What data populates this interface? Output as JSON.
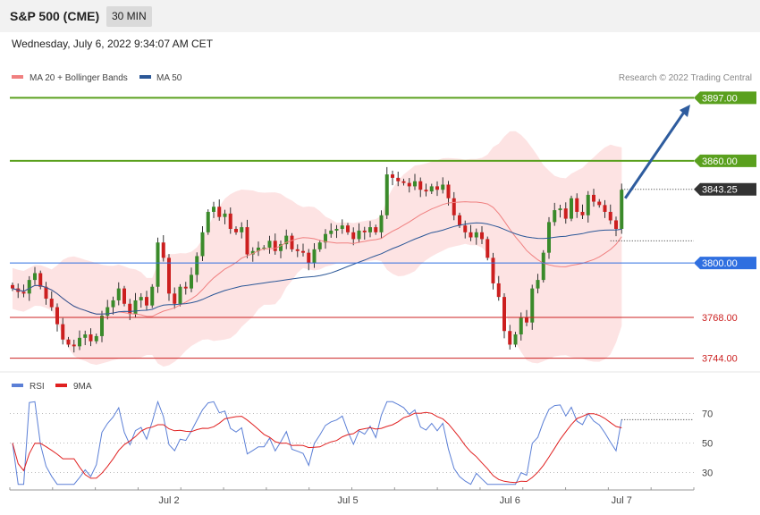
{
  "header": {
    "title": "S&P 500 (CME)",
    "interval": "30 MIN",
    "datetime": "Wednesday, July 6, 2022 9:34:07 AM CET"
  },
  "legend": {
    "bollinger_label": "MA 20 + Bollinger Bands",
    "bollinger_color": "#f08080",
    "ma50_label": "MA 50",
    "ma50_color": "#2b5797",
    "credit": "Research © 2022 Trading Central"
  },
  "rsi_legend": {
    "rsi_label": "RSI",
    "rsi_color": "#5b7fd6",
    "ma9_label": "9MA",
    "ma9_color": "#e02020"
  },
  "chart_data": [
    {
      "type": "candlestick",
      "ylim": [
        3737,
        3903
      ],
      "levels": [
        {
          "value": 3897.0,
          "label": "3897.00",
          "style": "resistance",
          "color": "#5aa01e"
        },
        {
          "value": 3860.0,
          "label": "3860.00",
          "style": "resistance",
          "color": "#5aa01e"
        },
        {
          "value": 3843.25,
          "label": "3843.25",
          "style": "last-price",
          "color": "#333333"
        },
        {
          "value": 3800.0,
          "label": "3800.00",
          "style": "pivot",
          "color": "#2f6fe0"
        },
        {
          "value": 3768.0,
          "label": "3768.00",
          "style": "support",
          "color": "#cc2222"
        },
        {
          "value": 3744.0,
          "label": "3744.00",
          "style": "support",
          "color": "#cc2222"
        }
      ],
      "x_ticks": [
        {
          "label": "Jul 2",
          "index": 28
        },
        {
          "label": "Jul 5",
          "index": 60
        },
        {
          "label": "Jul 6",
          "index": 89
        },
        {
          "label": "Jul 7",
          "index": 109
        }
      ],
      "close": [
        3785,
        3783,
        3782,
        3790,
        3794,
        3786,
        3779,
        3774,
        3764,
        3755,
        3752,
        3751,
        3756,
        3758,
        3754,
        3757,
        3769,
        3774,
        3778,
        3785,
        3776,
        3770,
        3778,
        3780,
        3775,
        3786,
        3812,
        3803,
        3782,
        3776,
        3786,
        3785,
        3793,
        3804,
        3818,
        3830,
        3833,
        3827,
        3829,
        3820,
        3818,
        3821,
        3805,
        3807,
        3809,
        3809,
        3813,
        3807,
        3811,
        3816,
        3808,
        3807,
        3806,
        3800,
        3808,
        3812,
        3817,
        3819,
        3820,
        3822,
        3818,
        3814,
        3819,
        3818,
        3821,
        3818,
        3828,
        3852,
        3850,
        3848,
        3847,
        3845,
        3848,
        3843,
        3842,
        3845,
        3843,
        3846,
        3838,
        3828,
        3822,
        3818,
        3815,
        3818,
        3814,
        3803,
        3788,
        3780,
        3760,
        3752,
        3758,
        3768,
        3765,
        3785,
        3790,
        3806,
        3824,
        3831,
        3832,
        3826,
        3838,
        3830,
        3828,
        3840,
        3836,
        3834,
        3830,
        3825,
        3820,
        3843
      ],
      "annotation": {
        "type": "arrow",
        "from": 3838,
        "to": 3893
      }
    },
    {
      "type": "line",
      "ylim": [
        20,
        80
      ],
      "guides": [
        70,
        50,
        30
      ],
      "series": [
        "RSI",
        "9MA"
      ]
    }
  ]
}
